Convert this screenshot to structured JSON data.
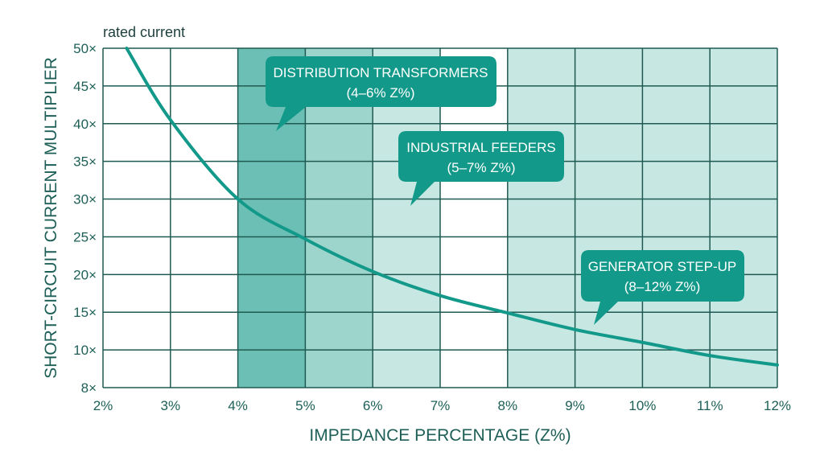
{
  "chart_data": {
    "type": "line",
    "title": "",
    "xlabel": "IMPEDANCE PERCENTAGE (Z%)",
    "ylabel": "SHORT-CIRCUIT CURRENT MULTIPLIER",
    "y_unit_note": "rated current",
    "xlim": [
      2,
      12
    ],
    "ylim": [
      8,
      50
    ],
    "grid": true,
    "x_ticks": [
      "2%",
      "3%",
      "4%",
      "5%",
      "6%",
      "7%",
      "8%",
      "9%",
      "10%",
      "11%",
      "12%"
    ],
    "y_ticks": [
      "8×",
      "10×",
      "15×",
      "20×",
      "25×",
      "30×",
      "35×",
      "40×",
      "45×",
      "50×"
    ],
    "y_tick_values": [
      8,
      10,
      15,
      20,
      25,
      30,
      35,
      40,
      45,
      50
    ],
    "series": [
      {
        "x": [
          2.35,
          3,
          4,
          5,
          6,
          7,
          8,
          9,
          10,
          11,
          12
        ],
        "y": [
          50,
          40.5,
          30,
          24.7,
          20.4,
          17.2,
          14.9,
          12.7,
          11.0,
          9.7,
          9.2
        ],
        "color": "#13998a"
      }
    ],
    "bands": [
      {
        "from": 4,
        "to": 5,
        "color": "#6cbfb4"
      },
      {
        "from": 5,
        "to": 6,
        "color": "#9dd4cc"
      },
      {
        "from": 6,
        "to": 7,
        "color": "#c6e7e2"
      },
      {
        "from": 8,
        "to": 12,
        "color": "#c6e7e2"
      }
    ],
    "annotations": [
      {
        "line1": "DISTRIBUTION TRANSFORMERS",
        "line2": "(4–6% Z%)"
      },
      {
        "line1": "INDUSTRIAL FEEDERS",
        "line2": "(5–7% Z%)"
      },
      {
        "line1": "GENERATOR STEP-UP",
        "line2": "(8–12% Z%)"
      }
    ],
    "colors": {
      "callout": "#13998a",
      "grid": "#1f5a52",
      "text": "#1d5f57"
    }
  }
}
